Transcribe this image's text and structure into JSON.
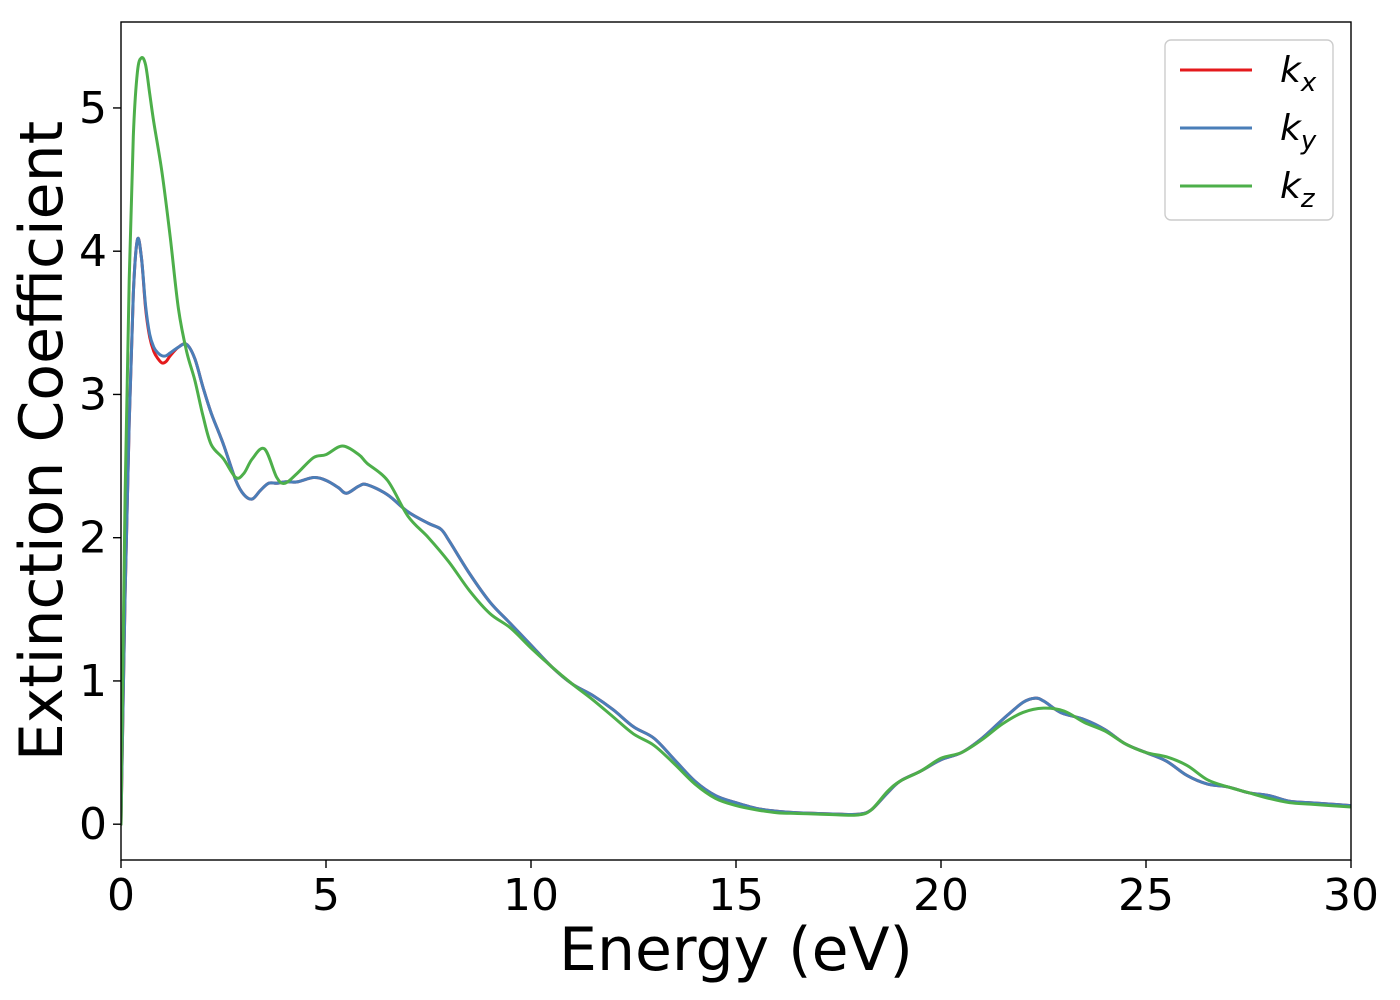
{
  "chart_data": {
    "type": "line",
    "xlabel": "Energy (eV)",
    "ylabel": "Extinction Coefficient",
    "xlim": [
      0,
      30
    ],
    "ylim": [
      -0.25,
      5.6
    ],
    "xticks": [
      0,
      5,
      10,
      15,
      20,
      25,
      30
    ],
    "xtick_labels": [
      "0",
      "5",
      "10",
      "15",
      "20",
      "25",
      "30"
    ],
    "yticks": [
      0,
      1,
      2,
      3,
      4,
      5
    ],
    "ytick_labels": [
      "0",
      "1",
      "2",
      "3",
      "4",
      "5"
    ],
    "grid": false,
    "legend_position": "top-right",
    "series": [
      {
        "name": "k_x",
        "legend_base": "k",
        "legend_sub": "x",
        "color": "#e41a1c",
        "x": [
          0,
          0.1,
          0.2,
          0.3,
          0.4,
          0.5,
          0.6,
          0.7,
          0.8,
          0.9,
          1.0,
          1.1,
          1.2,
          1.4,
          1.6,
          1.8,
          2.0,
          2.2,
          2.5,
          2.8,
          3.0,
          3.2,
          3.4,
          3.6,
          3.8,
          4.0,
          4.3,
          4.7,
          5.0,
          5.3,
          5.5,
          5.8,
          6.0,
          6.5,
          7.0,
          7.5,
          7.8,
          8.0,
          8.5,
          9.0,
          9.5,
          10.0,
          10.5,
          11.0,
          11.5,
          12.0,
          12.5,
          13.0,
          13.5,
          14.0,
          14.5,
          15.0,
          15.5,
          16.0,
          16.5,
          17.0,
          17.5,
          18.0,
          18.3,
          18.7,
          19.0,
          19.5,
          20.0,
          20.5,
          21.0,
          21.5,
          22.0,
          22.3,
          22.5,
          22.8,
          23.0,
          23.5,
          24.0,
          24.5,
          25.0,
          25.5,
          26.0,
          26.5,
          27.0,
          27.5,
          28.0,
          28.5,
          29.0,
          29.5,
          30.0
        ],
        "y": [
          0,
          1.6,
          2.8,
          3.7,
          4.08,
          3.95,
          3.6,
          3.4,
          3.3,
          3.25,
          3.22,
          3.23,
          3.27,
          3.33,
          3.35,
          3.25,
          3.05,
          2.87,
          2.65,
          2.4,
          2.3,
          2.27,
          2.33,
          2.38,
          2.38,
          2.39,
          2.39,
          2.42,
          2.4,
          2.35,
          2.31,
          2.36,
          2.37,
          2.3,
          2.18,
          2.1,
          2.06,
          1.98,
          1.75,
          1.55,
          1.4,
          1.25,
          1.1,
          0.98,
          0.9,
          0.8,
          0.68,
          0.6,
          0.45,
          0.3,
          0.2,
          0.15,
          0.11,
          0.09,
          0.08,
          0.075,
          0.07,
          0.07,
          0.1,
          0.22,
          0.3,
          0.37,
          0.45,
          0.5,
          0.6,
          0.73,
          0.85,
          0.88,
          0.86,
          0.8,
          0.77,
          0.73,
          0.66,
          0.56,
          0.5,
          0.44,
          0.34,
          0.28,
          0.26,
          0.22,
          0.2,
          0.16,
          0.15,
          0.14,
          0.13
        ]
      },
      {
        "name": "k_y",
        "legend_base": "k",
        "legend_sub": "y",
        "color": "#4a7eb8",
        "x": [
          0,
          0.1,
          0.2,
          0.3,
          0.4,
          0.5,
          0.6,
          0.7,
          0.8,
          0.9,
          1.0,
          1.1,
          1.2,
          1.4,
          1.6,
          1.8,
          2.0,
          2.2,
          2.5,
          2.8,
          3.0,
          3.2,
          3.4,
          3.6,
          3.8,
          4.0,
          4.3,
          4.7,
          5.0,
          5.3,
          5.5,
          5.8,
          6.0,
          6.5,
          7.0,
          7.5,
          7.8,
          8.0,
          8.5,
          9.0,
          9.5,
          10.0,
          10.5,
          11.0,
          11.5,
          12.0,
          12.5,
          13.0,
          13.5,
          14.0,
          14.5,
          15.0,
          15.5,
          16.0,
          16.5,
          17.0,
          17.5,
          18.0,
          18.3,
          18.7,
          19.0,
          19.5,
          20.0,
          20.5,
          21.0,
          21.5,
          22.0,
          22.3,
          22.5,
          22.8,
          23.0,
          23.5,
          24.0,
          24.5,
          25.0,
          25.5,
          26.0,
          26.5,
          27.0,
          27.5,
          28.0,
          28.5,
          29.0,
          29.5,
          30.0
        ],
        "y": [
          0,
          1.6,
          2.8,
          3.7,
          4.08,
          3.95,
          3.62,
          3.42,
          3.33,
          3.29,
          3.27,
          3.27,
          3.29,
          3.33,
          3.35,
          3.25,
          3.05,
          2.87,
          2.65,
          2.4,
          2.3,
          2.27,
          2.33,
          2.38,
          2.38,
          2.39,
          2.39,
          2.42,
          2.4,
          2.35,
          2.31,
          2.36,
          2.37,
          2.3,
          2.18,
          2.1,
          2.06,
          1.98,
          1.75,
          1.55,
          1.4,
          1.25,
          1.1,
          0.98,
          0.9,
          0.8,
          0.68,
          0.6,
          0.45,
          0.3,
          0.2,
          0.15,
          0.11,
          0.09,
          0.08,
          0.075,
          0.07,
          0.07,
          0.1,
          0.22,
          0.3,
          0.37,
          0.45,
          0.5,
          0.6,
          0.73,
          0.85,
          0.88,
          0.86,
          0.8,
          0.77,
          0.73,
          0.66,
          0.56,
          0.5,
          0.44,
          0.34,
          0.28,
          0.26,
          0.22,
          0.2,
          0.16,
          0.15,
          0.14,
          0.13
        ]
      },
      {
        "name": "k_z",
        "legend_base": "k",
        "legend_sub": "z",
        "color": "#4daf4a",
        "x": [
          0,
          0.1,
          0.2,
          0.3,
          0.4,
          0.5,
          0.6,
          0.7,
          0.8,
          1.0,
          1.2,
          1.4,
          1.6,
          1.8,
          2.0,
          2.2,
          2.5,
          2.8,
          3.0,
          3.2,
          3.5,
          3.8,
          4.0,
          4.3,
          4.7,
          5.0,
          5.4,
          5.8,
          6.0,
          6.5,
          7.0,
          7.5,
          8.0,
          8.5,
          9.0,
          9.5,
          10.0,
          10.5,
          11.0,
          11.5,
          12.0,
          12.5,
          13.0,
          13.5,
          14.0,
          14.5,
          15.0,
          15.5,
          16.0,
          16.5,
          17.0,
          17.5,
          18.0,
          18.3,
          18.7,
          19.0,
          19.5,
          20.0,
          20.5,
          21.0,
          21.5,
          22.0,
          22.5,
          23.0,
          23.5,
          24.0,
          24.5,
          25.0,
          25.5,
          26.0,
          26.5,
          27.0,
          27.5,
          28.0,
          28.5,
          29.0,
          29.5,
          30.0
        ],
        "y": [
          0,
          2.3,
          3.8,
          4.8,
          5.25,
          5.35,
          5.3,
          5.1,
          4.9,
          4.55,
          4.1,
          3.6,
          3.3,
          3.1,
          2.85,
          2.65,
          2.55,
          2.42,
          2.45,
          2.55,
          2.62,
          2.42,
          2.38,
          2.45,
          2.56,
          2.58,
          2.64,
          2.58,
          2.52,
          2.4,
          2.15,
          2.0,
          1.83,
          1.63,
          1.47,
          1.37,
          1.23,
          1.1,
          0.98,
          0.87,
          0.75,
          0.63,
          0.55,
          0.42,
          0.28,
          0.18,
          0.13,
          0.1,
          0.08,
          0.075,
          0.07,
          0.065,
          0.065,
          0.1,
          0.23,
          0.3,
          0.37,
          0.46,
          0.5,
          0.59,
          0.7,
          0.78,
          0.81,
          0.79,
          0.71,
          0.65,
          0.56,
          0.5,
          0.47,
          0.41,
          0.31,
          0.26,
          0.22,
          0.18,
          0.15,
          0.14,
          0.13,
          0.12
        ]
      }
    ]
  }
}
